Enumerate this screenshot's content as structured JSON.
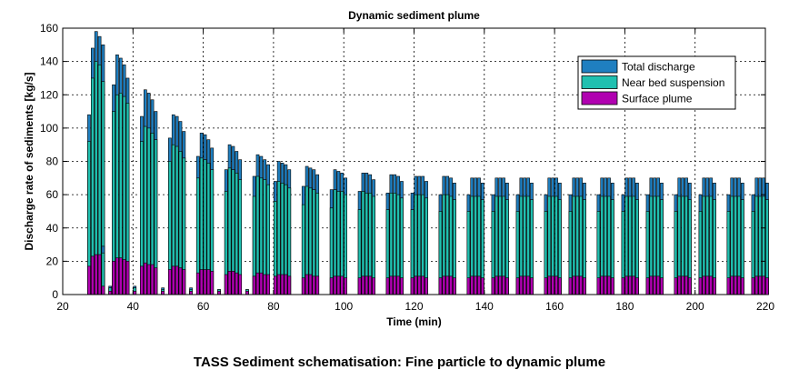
{
  "chart_data": {
    "type": "bar",
    "title": "Dynamic sediment plume",
    "xlabel": "Time (min)",
    "ylabel": "Discharge rate of sediments [kg/s]",
    "xlim": [
      20,
      220
    ],
    "ylim": [
      0,
      160
    ],
    "xticks": [
      20,
      40,
      60,
      80,
      100,
      120,
      140,
      160,
      180,
      200,
      220
    ],
    "yticks": [
      0,
      20,
      40,
      60,
      80,
      100,
      120,
      140,
      160
    ],
    "grid": true,
    "stacked": "overlaid",
    "legend_position": "top-right",
    "series": [
      {
        "name": "Total discharge",
        "color": "#1f7fc0"
      },
      {
        "name": "Near bed suspension",
        "color": "#20c0b0"
      },
      {
        "name": "Surface plume",
        "color": "#b000b0"
      }
    ],
    "cycles": [
      {
        "start": 27.5,
        "total": [
          108,
          148,
          158,
          155,
          150
        ],
        "near": [
          92,
          130,
          140,
          138,
          128
        ],
        "surface": [
          17,
          23,
          24,
          24,
          22
        ]
      },
      {
        "start": 34.5,
        "total": [
          126,
          144,
          142,
          138,
          130
        ],
        "near": [
          110,
          120,
          121,
          119,
          115
        ],
        "surface": [
          20,
          22,
          22,
          21,
          20
        ]
      },
      {
        "start": 42.5,
        "total": [
          107,
          123,
          121,
          117,
          110
        ],
        "near": [
          92,
          101,
          100,
          97,
          93
        ],
        "surface": [
          17,
          19,
          18,
          18,
          16
        ]
      },
      {
        "start": 50.5,
        "total": [
          94,
          108,
          107,
          104,
          98
        ],
        "near": [
          80,
          90,
          89,
          86,
          82
        ],
        "surface": [
          15,
          17,
          17,
          16,
          15
        ]
      },
      {
        "start": 58.5,
        "total": [
          83,
          97,
          96,
          93,
          88
        ],
        "near": [
          70,
          82,
          81,
          79,
          75
        ],
        "surface": [
          13,
          15,
          15,
          15,
          14
        ]
      },
      {
        "start": 66.5,
        "total": [
          75,
          90,
          89,
          86,
          81
        ],
        "near": [
          62,
          76,
          75,
          73,
          69
        ],
        "surface": [
          12,
          14,
          14,
          13,
          12
        ]
      },
      {
        "start": 74.5,
        "total": [
          71,
          84,
          83,
          81,
          78
        ],
        "near": [
          59,
          71,
          70,
          69,
          66
        ],
        "surface": [
          11,
          13,
          13,
          12,
          12
        ]
      },
      {
        "start": 80.5,
        "total": [
          68,
          80,
          79,
          78,
          75
        ],
        "near": [
          56,
          68,
          67,
          66,
          64
        ],
        "surface": [
          11,
          12,
          12,
          12,
          11
        ]
      },
      {
        "start": 88.5,
        "total": [
          65,
          77,
          76,
          75,
          72
        ],
        "near": [
          54,
          65,
          64,
          63,
          61
        ],
        "surface": [
          10,
          12,
          12,
          11,
          11
        ]
      },
      {
        "start": 96.5,
        "total": [
          63,
          75,
          74,
          73,
          70
        ],
        "near": [
          52,
          63,
          62,
          62,
          60
        ],
        "surface": [
          10,
          11,
          11,
          11,
          10
        ]
      },
      {
        "start": 104.5,
        "total": [
          62,
          73,
          73,
          72,
          69
        ],
        "near": [
          51,
          62,
          61,
          61,
          59
        ],
        "surface": [
          10,
          11,
          11,
          11,
          10
        ]
      },
      {
        "start": 112.5,
        "total": [
          61,
          72,
          72,
          71,
          68
        ],
        "near": [
          51,
          61,
          61,
          60,
          58
        ],
        "surface": [
          10,
          11,
          11,
          11,
          10
        ]
      },
      {
        "start": 119.5,
        "total": [
          61,
          71,
          71,
          71,
          68
        ],
        "near": [
          51,
          60,
          60,
          60,
          58
        ],
        "surface": [
          10,
          11,
          11,
          11,
          10
        ]
      },
      {
        "start": 127.5,
        "total": [
          60,
          71,
          71,
          70,
          67
        ],
        "near": [
          50,
          60,
          60,
          59,
          57
        ],
        "surface": [
          10,
          11,
          11,
          11,
          10
        ]
      },
      {
        "start": 135.5,
        "total": [
          60,
          70,
          70,
          70,
          67
        ],
        "near": [
          50,
          59,
          59,
          59,
          57
        ],
        "surface": [
          10,
          11,
          11,
          11,
          10
        ]
      },
      {
        "start": 142.5,
        "total": [
          60,
          70,
          70,
          70,
          67
        ],
        "near": [
          50,
          59,
          59,
          59,
          57
        ],
        "surface": [
          10,
          11,
          11,
          11,
          10
        ]
      },
      {
        "start": 149.5,
        "total": [
          60,
          70,
          70,
          70,
          67
        ],
        "near": [
          50,
          59,
          59,
          59,
          57
        ],
        "surface": [
          10,
          11,
          11,
          11,
          10
        ]
      },
      {
        "start": 157.5,
        "total": [
          60,
          70,
          70,
          70,
          67
        ],
        "near": [
          50,
          59,
          59,
          59,
          57
        ],
        "surface": [
          10,
          11,
          11,
          11,
          10
        ]
      },
      {
        "start": 164.5,
        "total": [
          60,
          70,
          70,
          70,
          67
        ],
        "near": [
          50,
          59,
          59,
          59,
          57
        ],
        "surface": [
          10,
          11,
          11,
          11,
          10
        ]
      },
      {
        "start": 172.5,
        "total": [
          60,
          70,
          70,
          70,
          67
        ],
        "near": [
          50,
          59,
          59,
          59,
          57
        ],
        "surface": [
          10,
          11,
          11,
          11,
          10
        ]
      },
      {
        "start": 179.5,
        "total": [
          60,
          70,
          70,
          70,
          67
        ],
        "near": [
          50,
          59,
          59,
          59,
          57
        ],
        "surface": [
          10,
          11,
          11,
          11,
          10
        ]
      },
      {
        "start": 186.5,
        "total": [
          60,
          70,
          70,
          70,
          67
        ],
        "near": [
          50,
          59,
          59,
          59,
          57
        ],
        "surface": [
          10,
          11,
          11,
          11,
          10
        ]
      },
      {
        "start": 194.5,
        "total": [
          60,
          70,
          70,
          70,
          67
        ],
        "near": [
          50,
          59,
          59,
          59,
          57
        ],
        "surface": [
          10,
          11,
          11,
          11,
          10
        ]
      },
      {
        "start": 201.5,
        "total": [
          60,
          70,
          70,
          70,
          67
        ],
        "near": [
          50,
          59,
          59,
          59,
          57
        ],
        "surface": [
          10,
          11,
          11,
          11,
          10
        ]
      },
      {
        "start": 209.5,
        "total": [
          60,
          70,
          70,
          70,
          67
        ],
        "near": [
          50,
          59,
          59,
          59,
          57
        ],
        "surface": [
          10,
          11,
          11,
          11,
          10
        ]
      },
      {
        "start": 216.5,
        "total": [
          60,
          70,
          70,
          70,
          67
        ],
        "near": [
          50,
          59,
          59,
          59,
          57
        ],
        "surface": [
          10,
          11,
          11,
          11,
          10
        ]
      }
    ],
    "gap_bars": [
      {
        "x": 31.5,
        "total": 29,
        "near": 25,
        "surface": 5
      },
      {
        "x": 33.5,
        "total": 5,
        "near": 4,
        "surface": 2
      },
      {
        "x": 40.5,
        "total": 5,
        "near": 4,
        "surface": 2
      },
      {
        "x": 48.5,
        "total": 4,
        "near": 3,
        "surface": 2
      },
      {
        "x": 56.5,
        "total": 4,
        "near": 3,
        "surface": 2
      },
      {
        "x": 64.5,
        "total": 3,
        "near": 3,
        "surface": 2
      },
      {
        "x": 72.5,
        "total": 3,
        "near": 3,
        "surface": 2
      }
    ]
  },
  "caption": "TASS Sediment schematisation: Fine particle to dynamic plume"
}
